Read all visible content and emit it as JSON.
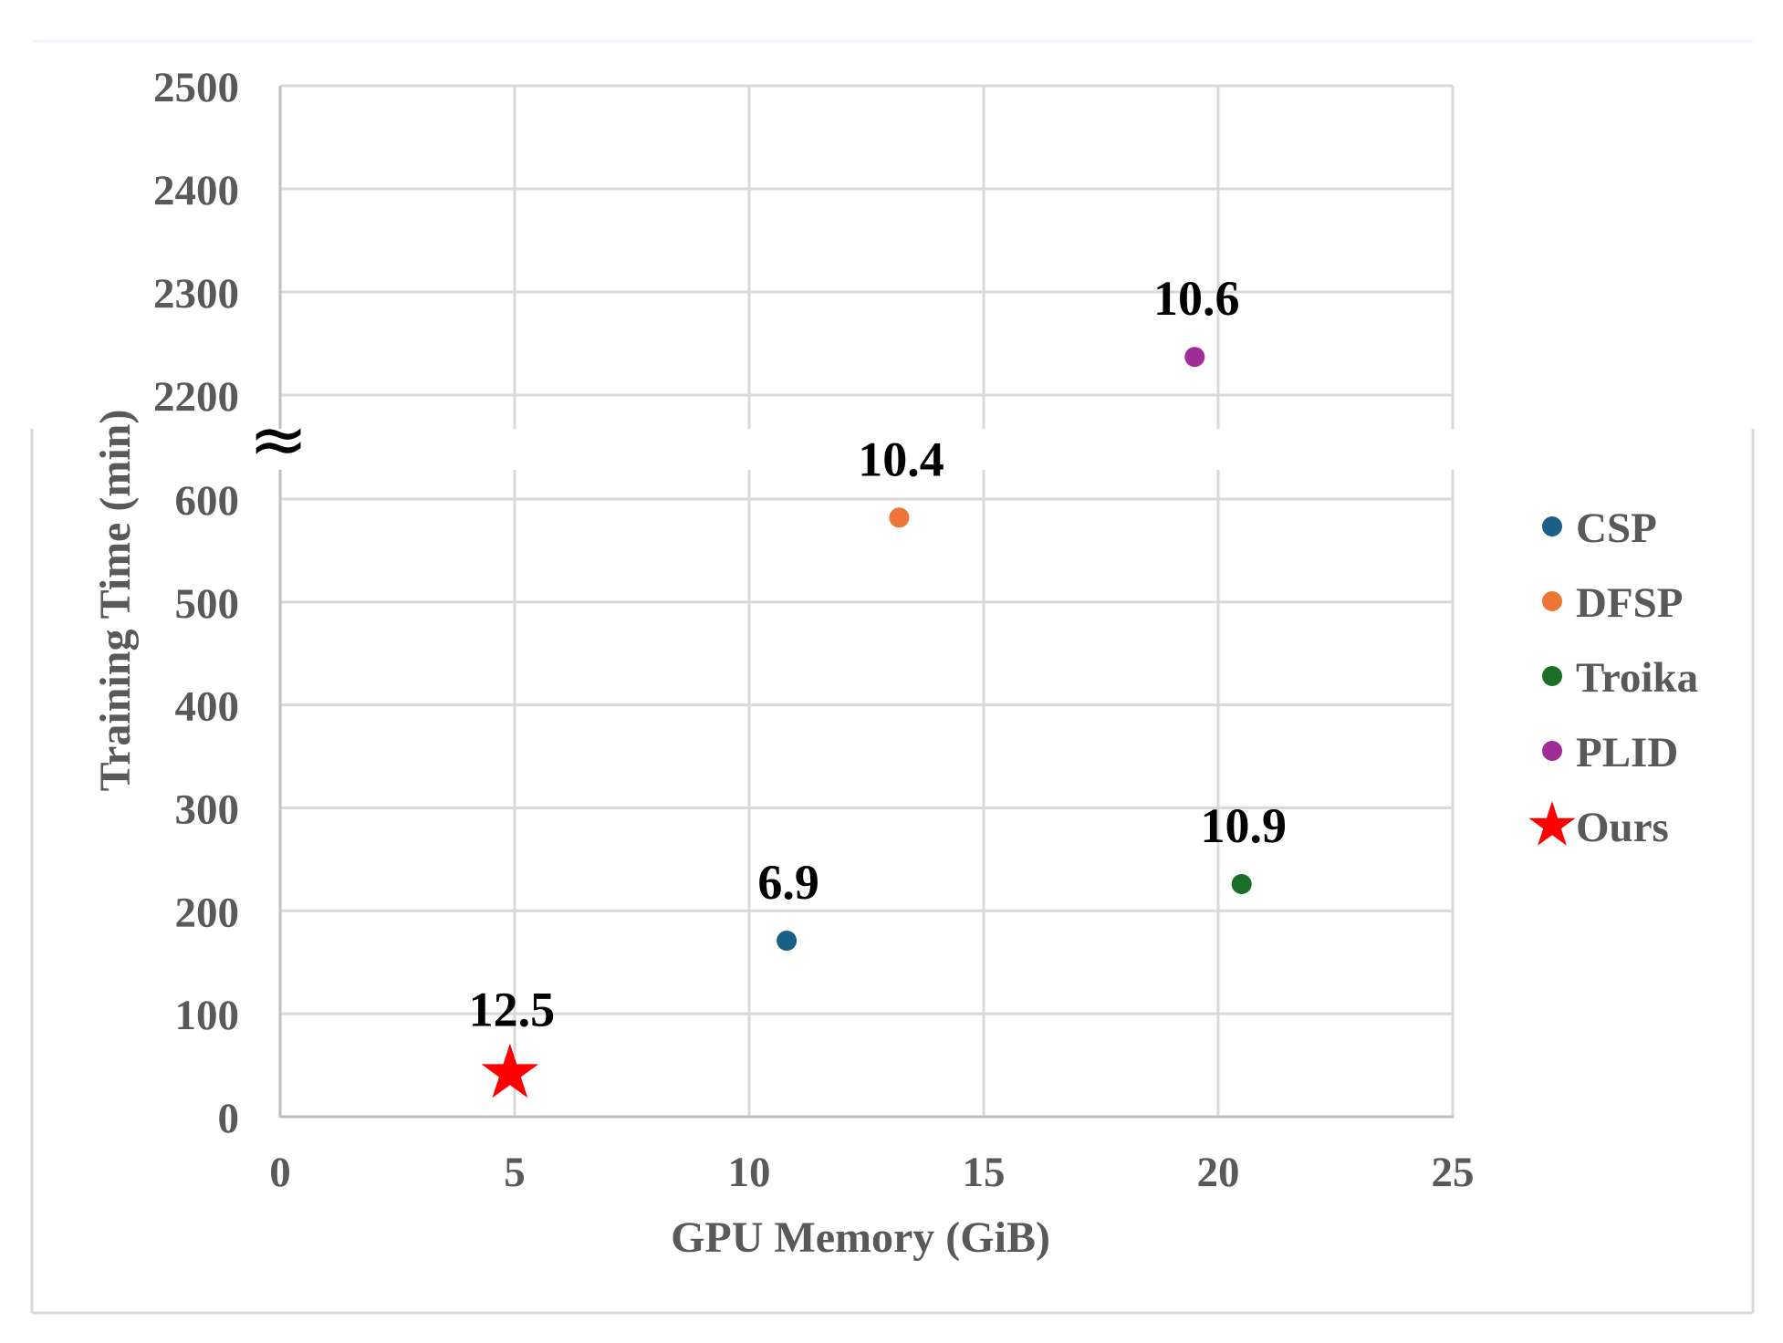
{
  "chart_data": {
    "type": "scatter",
    "title": "",
    "xlabel": "GPU Memory (GiB)",
    "ylabel": "Training Time (min)",
    "xlim": [
      0,
      25
    ],
    "x_ticks": [
      0,
      5,
      10,
      15,
      20,
      25
    ],
    "y_axis_break": {
      "lower_range": [
        0,
        600
      ],
      "upper_range": [
        2200,
        2500
      ],
      "symbol": "≈"
    },
    "y_ticks_upper": [
      2500,
      2400,
      2300,
      2200
    ],
    "y_ticks_lower": [
      600,
      500,
      400,
      300,
      200,
      100,
      0
    ],
    "grid": true,
    "legend_position": "right",
    "series": [
      {
        "name": "CSP",
        "color": "#1a5f86",
        "marker": "circle",
        "x": 10.8,
        "y": 171,
        "label": "6.9"
      },
      {
        "name": "DFSP",
        "color": "#ed7535",
        "marker": "circle",
        "x": 13.2,
        "y": 582,
        "label": "10.4"
      },
      {
        "name": "Troika",
        "color": "#1b6e25",
        "marker": "circle",
        "x": 20.5,
        "y": 226,
        "label": "10.9"
      },
      {
        "name": "PLID",
        "color": "#a02d96",
        "marker": "circle",
        "x": 19.5,
        "y": 2237,
        "label": "10.6"
      },
      {
        "name": "Ours",
        "color": "#ff0000",
        "marker": "star",
        "x": 4.9,
        "y": 42,
        "label": "12.5"
      }
    ]
  },
  "legend": {
    "items": [
      {
        "label": "CSP",
        "color": "#1a5f86",
        "marker": "circle"
      },
      {
        "label": "DFSP",
        "color": "#ed7535",
        "marker": "circle"
      },
      {
        "label": "Troika",
        "color": "#1b6e25",
        "marker": "circle"
      },
      {
        "label": "PLID",
        "color": "#a02d96",
        "marker": "circle"
      },
      {
        "label": "Ours",
        "color": "#ff0000",
        "marker": "star"
      }
    ]
  },
  "axes": {
    "x_title": "GPU Memory (GiB)",
    "y_title": "Training Time (min)",
    "break_symbol": "≈"
  }
}
